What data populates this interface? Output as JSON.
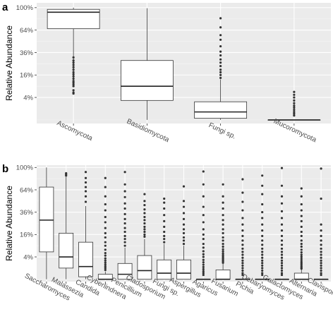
{
  "chart_data": [
    {
      "panel": "a",
      "type": "box",
      "ylabel": "Relative Abundance",
      "scale": "sqrt",
      "yticks": [
        0.04,
        0.16,
        0.36,
        0.64,
        1.0
      ],
      "ytick_labels": [
        "4%",
        "16%",
        "36%",
        "64%",
        "100%"
      ],
      "ylim": [
        0,
        1.0
      ],
      "grid": true,
      "categories": [
        "Ascomycota",
        "Basidiomycota",
        "Fungi sp.",
        "Mucoromycota"
      ],
      "boxes": [
        {
          "min": 0.1,
          "q1": 0.66,
          "median": 0.92,
          "q3": 0.97,
          "max": 1.0,
          "outliers": [
            0.055,
            0.06,
            0.07,
            0.09,
            0.1,
            0.11,
            0.12,
            0.135,
            0.15,
            0.165,
            0.18,
            0.2,
            0.22,
            0.24,
            0.26,
            0.28,
            0.31
          ]
        },
        {
          "min": 0.0,
          "q1": 0.03,
          "median": 0.09,
          "q3": 0.28,
          "max": 0.99,
          "outliers": []
        },
        {
          "min": 0.0,
          "q1": 0.0002,
          "median": 0.005,
          "q3": 0.026,
          "max": 0.13,
          "outliers": [
            0.14,
            0.16,
            0.18,
            0.2,
            0.23,
            0.26,
            0.29,
            0.33,
            0.37,
            0.43,
            0.51,
            0.57,
            0.68,
            0.82
          ]
        },
        {
          "min": 0.0,
          "q1": 0.0,
          "median": 0.0,
          "q3": 0.0,
          "max": 0.0,
          "outliers": [
            0.0015,
            0.003,
            0.005,
            0.008,
            0.012,
            0.016,
            0.022,
            0.03,
            0.04,
            0.05,
            0.062
          ]
        }
      ]
    },
    {
      "panel": "b",
      "type": "box",
      "ylabel": "Relative Abundance",
      "scale": "sqrt",
      "yticks": [
        0.04,
        0.16,
        0.36,
        0.64,
        1.0
      ],
      "ytick_labels": [
        "4%",
        "16%",
        "36%",
        "64%",
        "100%"
      ],
      "ylim": [
        0,
        1.0
      ],
      "grid": true,
      "categories": [
        "Saccharomyces",
        "Malassezia",
        "Candida",
        "Cyberlindnera",
        "Penicillium",
        "Cladosporium",
        "Fungi sp.",
        "Aspergillus",
        "Agaricus",
        "Fusarium",
        "Pichia",
        "Debaryomyces",
        "Galactomyces",
        "Alternaria",
        "Clavispora"
      ],
      "boxes": [
        {
          "min": 0.0,
          "q1": 0.06,
          "median": 0.28,
          "q3": 0.68,
          "max": 1.0,
          "outliers": []
        },
        {
          "min": 0.0,
          "q1": 0.01,
          "median": 0.04,
          "q3": 0.17,
          "max": 0.84,
          "outliers": [
            0.86,
            0.88,
            0.9
          ]
        },
        {
          "min": 0.0,
          "q1": 0.0005,
          "median": 0.013,
          "q3": 0.11,
          "max": 0.43,
          "outliers": [
            0.48,
            0.55,
            0.62,
            0.68,
            0.75,
            0.82,
            0.92
          ]
        },
        {
          "min": 0.0,
          "q1": 0.0,
          "median": 0.0,
          "q3": 0.002,
          "max": 0.005,
          "outliers": [
            0.007,
            0.01,
            0.013,
            0.017,
            0.022,
            0.028,
            0.035,
            0.045,
            0.055,
            0.07,
            0.09,
            0.11,
            0.14,
            0.17,
            0.21,
            0.26,
            0.31,
            0.38,
            0.45,
            0.55,
            0.68,
            0.82
          ]
        },
        {
          "min": 0.0,
          "q1": 0.0,
          "median": 0.002,
          "q3": 0.02,
          "max": 0.08,
          "outliers": [
            0.09,
            0.11,
            0.13,
            0.15,
            0.18,
            0.21,
            0.25,
            0.29,
            0.34,
            0.4,
            0.46,
            0.54,
            0.62,
            0.72,
            0.92
          ]
        },
        {
          "min": 0.0,
          "q1": 0.0,
          "median": 0.006,
          "q3": 0.045,
          "max": 0.13,
          "outliers": [
            0.145,
            0.16,
            0.18,
            0.2,
            0.22,
            0.25,
            0.28,
            0.31,
            0.35,
            0.39,
            0.44,
            0.49,
            0.58
          ]
        },
        {
          "min": 0.0,
          "q1": 0.0,
          "median": 0.003,
          "q3": 0.03,
          "max": 0.1,
          "outliers": [
            0.11,
            0.13,
            0.15,
            0.18,
            0.22,
            0.27,
            0.33,
            0.4,
            0.47,
            0.52
          ]
        },
        {
          "min": 0.0,
          "q1": 0.0,
          "median": 0.003,
          "q3": 0.03,
          "max": 0.09,
          "outliers": [
            0.1,
            0.12,
            0.14,
            0.17,
            0.2,
            0.24,
            0.29,
            0.35,
            0.42,
            0.49,
            0.69
          ]
        },
        {
          "min": 0.0,
          "q1": 0.0,
          "median": 0.0,
          "q3": 0.0,
          "max": 0.0,
          "outliers": [
            0.0015,
            0.003,
            0.005,
            0.008,
            0.012,
            0.017,
            0.023,
            0.03,
            0.04,
            0.05,
            0.063,
            0.08,
            0.1,
            0.13,
            0.16,
            0.2,
            0.26,
            0.33,
            0.42,
            0.55,
            0.72,
            0.93
          ]
        },
        {
          "min": 0.0,
          "q1": 0.0,
          "median": 0.0,
          "q3": 0.007,
          "max": 0.02,
          "outliers": [
            0.022,
            0.026,
            0.03,
            0.035,
            0.04,
            0.046,
            0.053,
            0.062,
            0.072,
            0.085,
            0.1,
            0.12,
            0.14,
            0.17,
            0.2,
            0.24,
            0.28,
            0.33,
            0.4,
            0.47,
            0.55,
            0.72
          ]
        },
        {
          "min": 0.0,
          "q1": 0.0,
          "median": 0.0,
          "q3": 0.0,
          "max": 0.0,
          "outliers": [
            0.0015,
            0.003,
            0.006,
            0.01,
            0.015,
            0.021,
            0.028,
            0.037,
            0.048,
            0.06,
            0.075,
            0.095,
            0.12,
            0.15,
            0.19,
            0.24,
            0.3,
            0.38,
            0.48,
            0.6,
            0.8
          ]
        },
        {
          "min": 0.0,
          "q1": 0.0,
          "median": 0.0,
          "q3": 0.0,
          "max": 0.0,
          "outliers": [
            0.0015,
            0.003,
            0.006,
            0.01,
            0.015,
            0.021,
            0.028,
            0.037,
            0.048,
            0.06,
            0.075,
            0.095,
            0.12,
            0.15,
            0.19,
            0.24,
            0.3,
            0.36,
            0.45,
            0.58,
            0.7,
            0.86
          ]
        },
        {
          "min": 0.0,
          "q1": 0.0,
          "median": 0.0,
          "q3": 0.0,
          "max": 0.0,
          "outliers": [
            0.0015,
            0.003,
            0.006,
            0.01,
            0.015,
            0.021,
            0.028,
            0.037,
            0.048,
            0.06,
            0.075,
            0.095,
            0.12,
            0.15,
            0.19,
            0.24,
            0.3,
            0.37,
            0.46,
            0.55,
            0.7,
            0.99
          ]
        },
        {
          "min": 0.0,
          "q1": 0.0,
          "median": 0.0,
          "q3": 0.003,
          "max": 0.008,
          "outliers": [
            0.009,
            0.011,
            0.014,
            0.018,
            0.022,
            0.027,
            0.033,
            0.04,
            0.048,
            0.058,
            0.07,
            0.085,
            0.1,
            0.12,
            0.15,
            0.18,
            0.22,
            0.27,
            0.32,
            0.38,
            0.45,
            0.55,
            0.66
          ]
        },
        {
          "min": 0.0,
          "q1": 0.0,
          "median": 0.0,
          "q3": 0.0,
          "max": 0.0,
          "outliers": [
            0.0015,
            0.003,
            0.006,
            0.01,
            0.015,
            0.021,
            0.028,
            0.037,
            0.048,
            0.06,
            0.075,
            0.095,
            0.12,
            0.15,
            0.19,
            0.24,
            0.52,
            0.98
          ]
        }
      ]
    }
  ]
}
